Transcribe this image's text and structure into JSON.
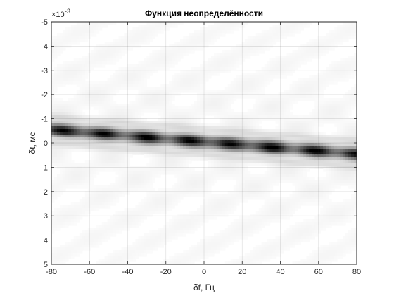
{
  "chart_data": {
    "type": "heatmap",
    "title": "Функция неопределённости",
    "xlabel": "δf, Гц",
    "ylabel": "δt, мс",
    "y_exponent_label": "×10",
    "y_exponent_power": "-3",
    "xlim": [
      -80,
      80
    ],
    "ylim": [
      -5,
      5
    ],
    "y_axis_reversed": true,
    "grid": true,
    "colormap": "gray-inverted",
    "x_ticks": [
      -80,
      -60,
      -40,
      -20,
      0,
      20,
      40,
      60,
      80
    ],
    "x_tick_labels": [
      "-80",
      "-60",
      "-40",
      "-20",
      "0",
      "20",
      "40",
      "60",
      "80"
    ],
    "y_ticks": [
      -5,
      -4,
      -3,
      -2,
      -1,
      0,
      1,
      2,
      3,
      4,
      5
    ],
    "y_tick_labels": [
      "-5",
      "-4",
      "-3",
      "-2",
      "-1",
      "0",
      "1",
      "2",
      "3",
      "4",
      "5"
    ],
    "ridge": {
      "x": [
        -80,
        80
      ],
      "y": [
        -0.55,
        0.45
      ],
      "width": 0.18,
      "modulation_period": 22
    }
  }
}
